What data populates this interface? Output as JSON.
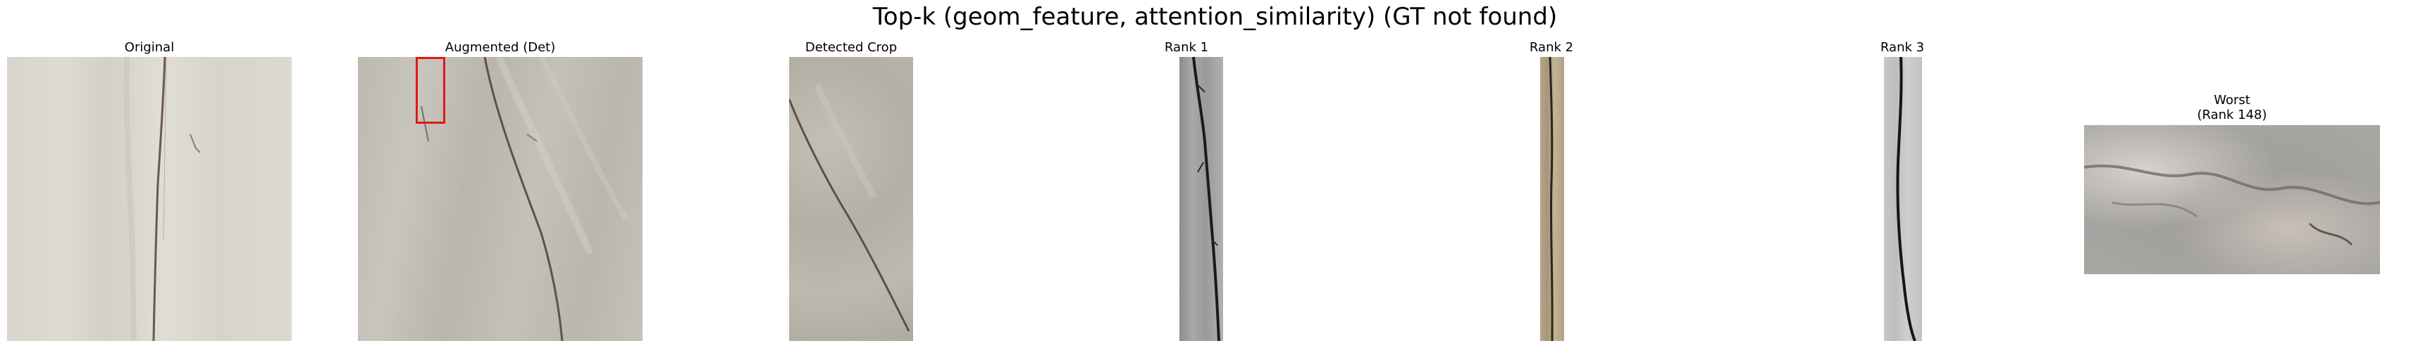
{
  "figure": {
    "title": "Top-k (geom_feature, attention_similarity) (GT not found)"
  },
  "panels": [
    {
      "title": "Original",
      "image": "concrete-crack-original"
    },
    {
      "title": "Augmented (Det)",
      "image": "concrete-crack-augmented",
      "detection_box_color": "#e01818"
    },
    {
      "title": "Detected Crop",
      "image": "detected-crop"
    },
    {
      "title": "Rank 1",
      "image": "crack-rank-1"
    },
    {
      "title": "Rank 2",
      "image": "crack-rank-2"
    },
    {
      "title": "Rank 3",
      "image": "crack-rank-3"
    },
    {
      "title": "Worst\n(Rank 148)",
      "image": "crack-worst"
    }
  ]
}
